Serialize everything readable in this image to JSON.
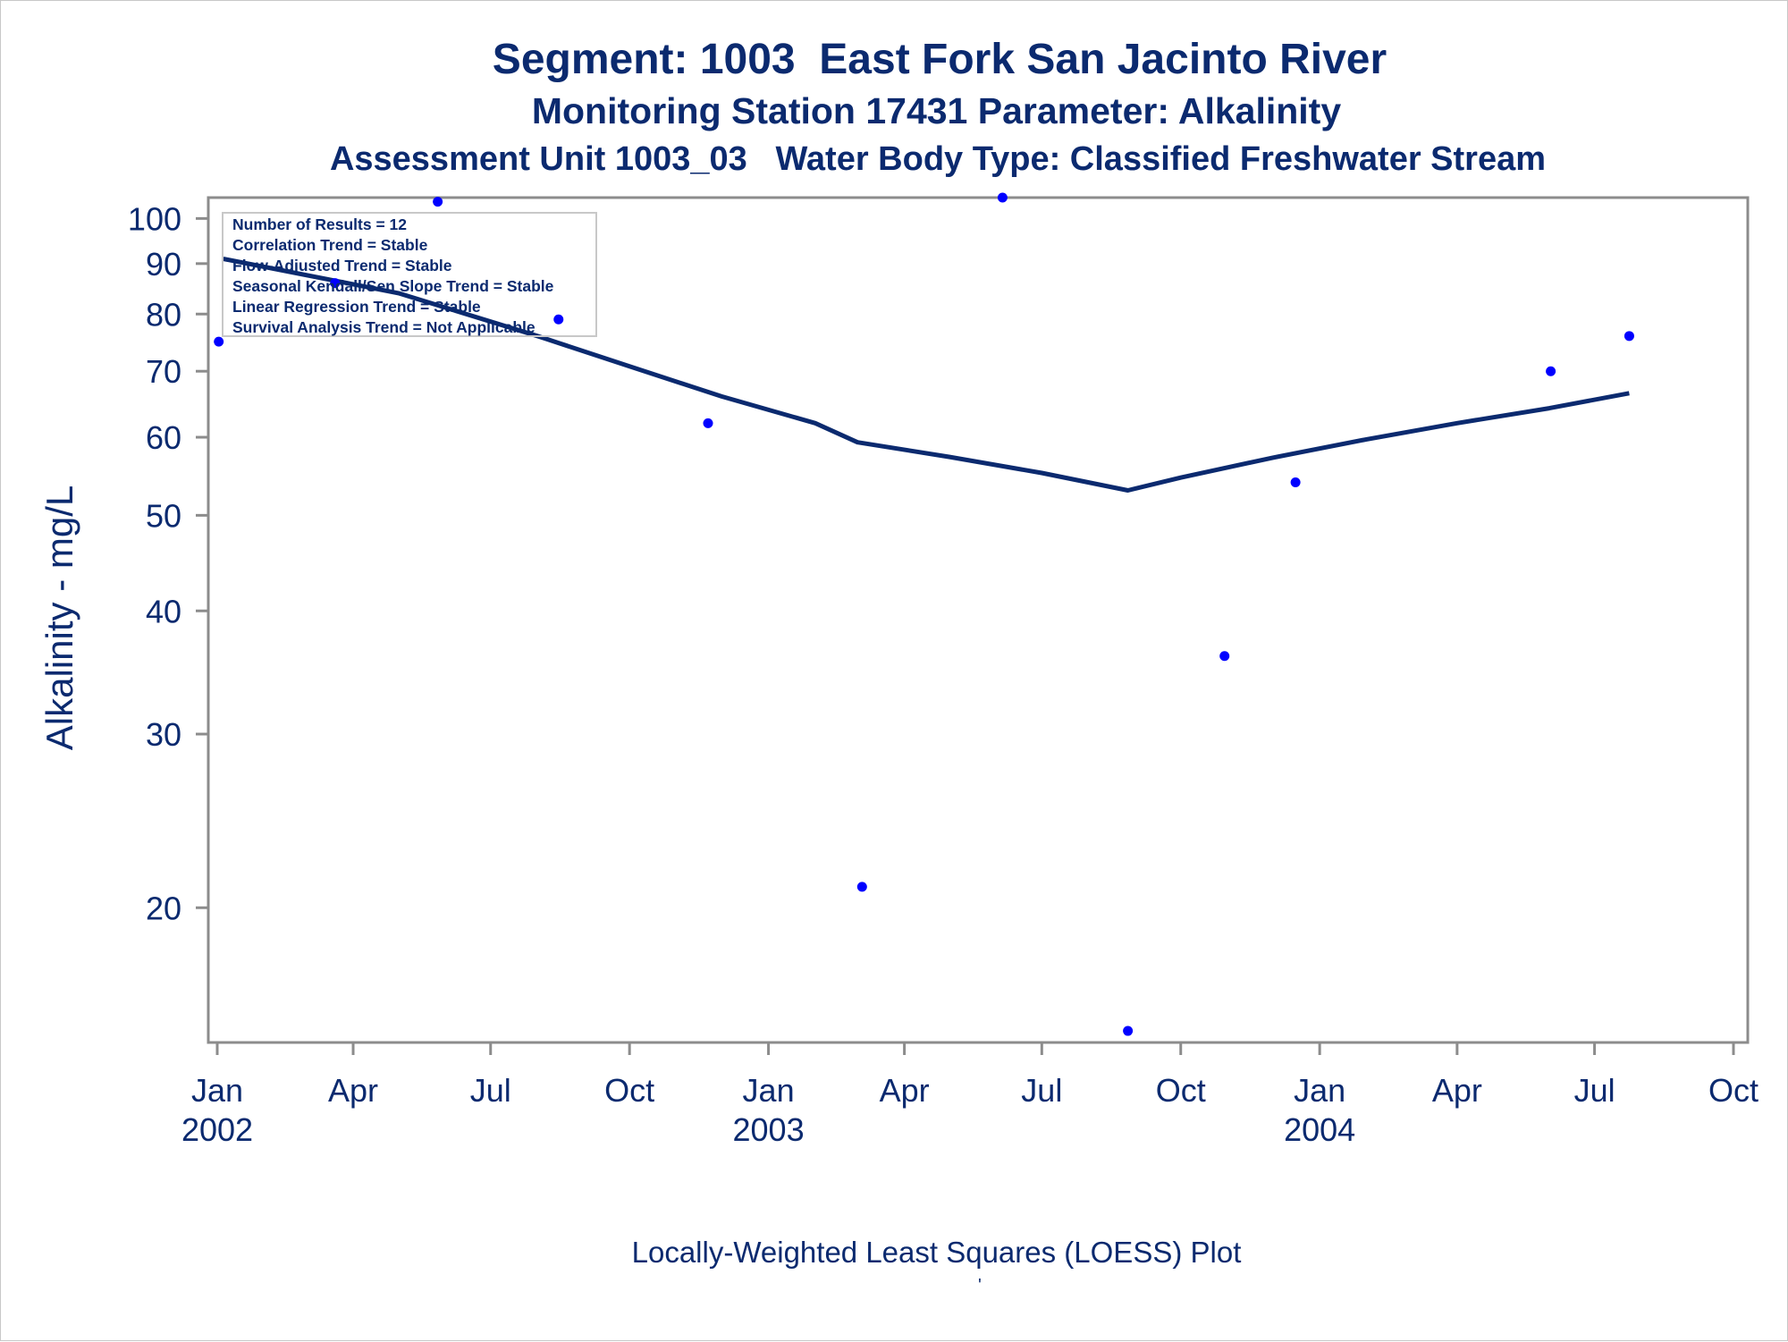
{
  "titles": {
    "line1": "Segment: 1003  East Fork San Jacinto River",
    "line2": "Monitoring Station 17431 Parameter: Alkalinity",
    "line3": "Assessment Unit 1003_03   Water Body Type: Classified Freshwater Stream"
  },
  "footnote": "Locally-Weighted Least Squares (LOESS) Plot",
  "footmark": "'",
  "stats_box": {
    "lines": [
      "Number of Results = 12",
      "Correlation Trend = Stable",
      "Flow-Adjusted Trend = Stable",
      "Seasonal Kendall/Sen Slope Trend = Stable",
      "Linear Regression Trend = Stable",
      "Survival Analysis Trend = Not Applicable"
    ]
  },
  "colors": {
    "text": "#0b2a6f",
    "points": "#0000ff",
    "loess_line": "#0b2a6f",
    "axis": "#8c8c8c"
  },
  "chart_data": {
    "type": "scatter",
    "ylabel": "Alkalinity - mg/L",
    "y_scale": "log",
    "ylim": [
      14.6,
      105
    ],
    "xlim": [
      "2002-01-01",
      "2004-10-01"
    ],
    "y_ticks": [
      20,
      30,
      40,
      50,
      60,
      70,
      80,
      90,
      100
    ],
    "x_ticks": [
      {
        "date": "2002-01-01",
        "month": "Jan",
        "year": "2002"
      },
      {
        "date": "2002-04-01",
        "month": "Apr",
        "year": ""
      },
      {
        "date": "2002-07-01",
        "month": "Jul",
        "year": ""
      },
      {
        "date": "2002-10-01",
        "month": "Oct",
        "year": ""
      },
      {
        "date": "2003-01-01",
        "month": "Jan",
        "year": "2003"
      },
      {
        "date": "2003-04-01",
        "month": "Apr",
        "year": ""
      },
      {
        "date": "2003-07-01",
        "month": "Jul",
        "year": ""
      },
      {
        "date": "2003-10-01",
        "month": "Oct",
        "year": ""
      },
      {
        "date": "2004-01-01",
        "month": "Jan",
        "year": "2004"
      },
      {
        "date": "2004-04-01",
        "month": "Apr",
        "year": ""
      },
      {
        "date": "2004-07-01",
        "month": "Jul",
        "year": ""
      },
      {
        "date": "2004-10-01",
        "month": "Oct",
        "year": ""
      }
    ],
    "points": [
      {
        "x": "2002-01-02",
        "y": 75
      },
      {
        "x": "2002-03-20",
        "y": 86
      },
      {
        "x": "2002-05-27",
        "y": 104
      },
      {
        "x": "2002-08-15",
        "y": 79
      },
      {
        "x": "2002-11-22",
        "y": 62
      },
      {
        "x": "2003-03-04",
        "y": 21
      },
      {
        "x": "2003-06-05",
        "y": 105
      },
      {
        "x": "2003-08-27",
        "y": 15
      },
      {
        "x": "2003-10-30",
        "y": 36
      },
      {
        "x": "2003-12-16",
        "y": 54
      },
      {
        "x": "2004-06-02",
        "y": 70
      },
      {
        "x": "2004-07-24",
        "y": 76
      }
    ],
    "loess": [
      {
        "x": "2002-01-05",
        "y": 91
      },
      {
        "x": "2002-05-01",
        "y": 84
      },
      {
        "x": "2002-08-01",
        "y": 76
      },
      {
        "x": "2002-10-01",
        "y": 70.8
      },
      {
        "x": "2002-12-01",
        "y": 66
      },
      {
        "x": "2003-02-01",
        "y": 62
      },
      {
        "x": "2003-03-01",
        "y": 59.3
      },
      {
        "x": "2003-05-01",
        "y": 57.3
      },
      {
        "x": "2003-07-01",
        "y": 55.2
      },
      {
        "x": "2003-08-27",
        "y": 53
      },
      {
        "x": "2003-10-01",
        "y": 54.6
      },
      {
        "x": "2003-12-01",
        "y": 57.2
      },
      {
        "x": "2004-02-01",
        "y": 59.7
      },
      {
        "x": "2004-04-01",
        "y": 62
      },
      {
        "x": "2004-06-01",
        "y": 64.2
      },
      {
        "x": "2004-07-24",
        "y": 66.5
      }
    ]
  }
}
